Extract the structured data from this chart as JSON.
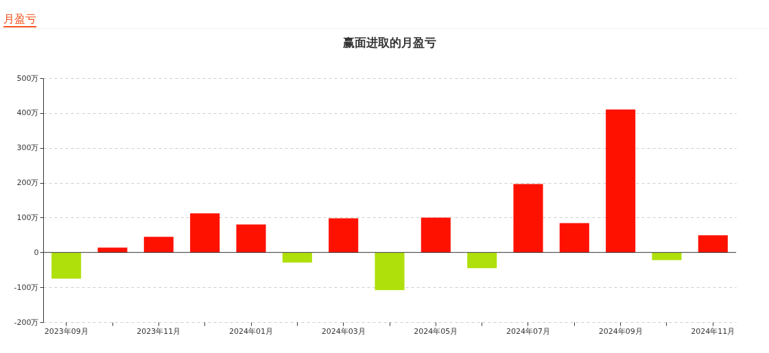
{
  "chart_data": {
    "type": "bar",
    "title": "赢面进取的月盈亏",
    "annotations": [
      "月盈亏"
    ],
    "categories": [
      "2023年09月",
      null,
      "2023年11月",
      null,
      "2024年01月",
      null,
      "2024年03月",
      null,
      "2024年05月",
      null,
      "2024年07月",
      null,
      "2024年09月",
      null,
      "2024年11月"
    ],
    "values": [
      -75,
      14,
      45,
      112,
      80,
      -29,
      98,
      -108,
      100,
      -45,
      196,
      84,
      410,
      -22,
      49
    ],
    "colors": [
      "#afe00b",
      "#ff1100",
      "#ff1100",
      "#ff1100",
      "#ff1100",
      "#afe00b",
      "#ff1100",
      "#afe00b",
      "#ff1100",
      "#afe00b",
      "#ff1100",
      "#ff1100",
      "#ff1100",
      "#afe00b",
      "#ff1100"
    ],
    "ylim": [
      -200,
      500
    ],
    "yticks": [
      {
        "value": -200,
        "label": "-200万"
      },
      {
        "value": -100,
        "label": "-100万"
      },
      {
        "value": 0,
        "label": "0"
      },
      {
        "value": 100,
        "label": "100万"
      },
      {
        "value": 200,
        "label": "200万"
      },
      {
        "value": 300,
        "label": "300万"
      },
      {
        "value": 400,
        "label": "400万"
      },
      {
        "value": 500,
        "label": "500万"
      }
    ],
    "grid": "y"
  }
}
